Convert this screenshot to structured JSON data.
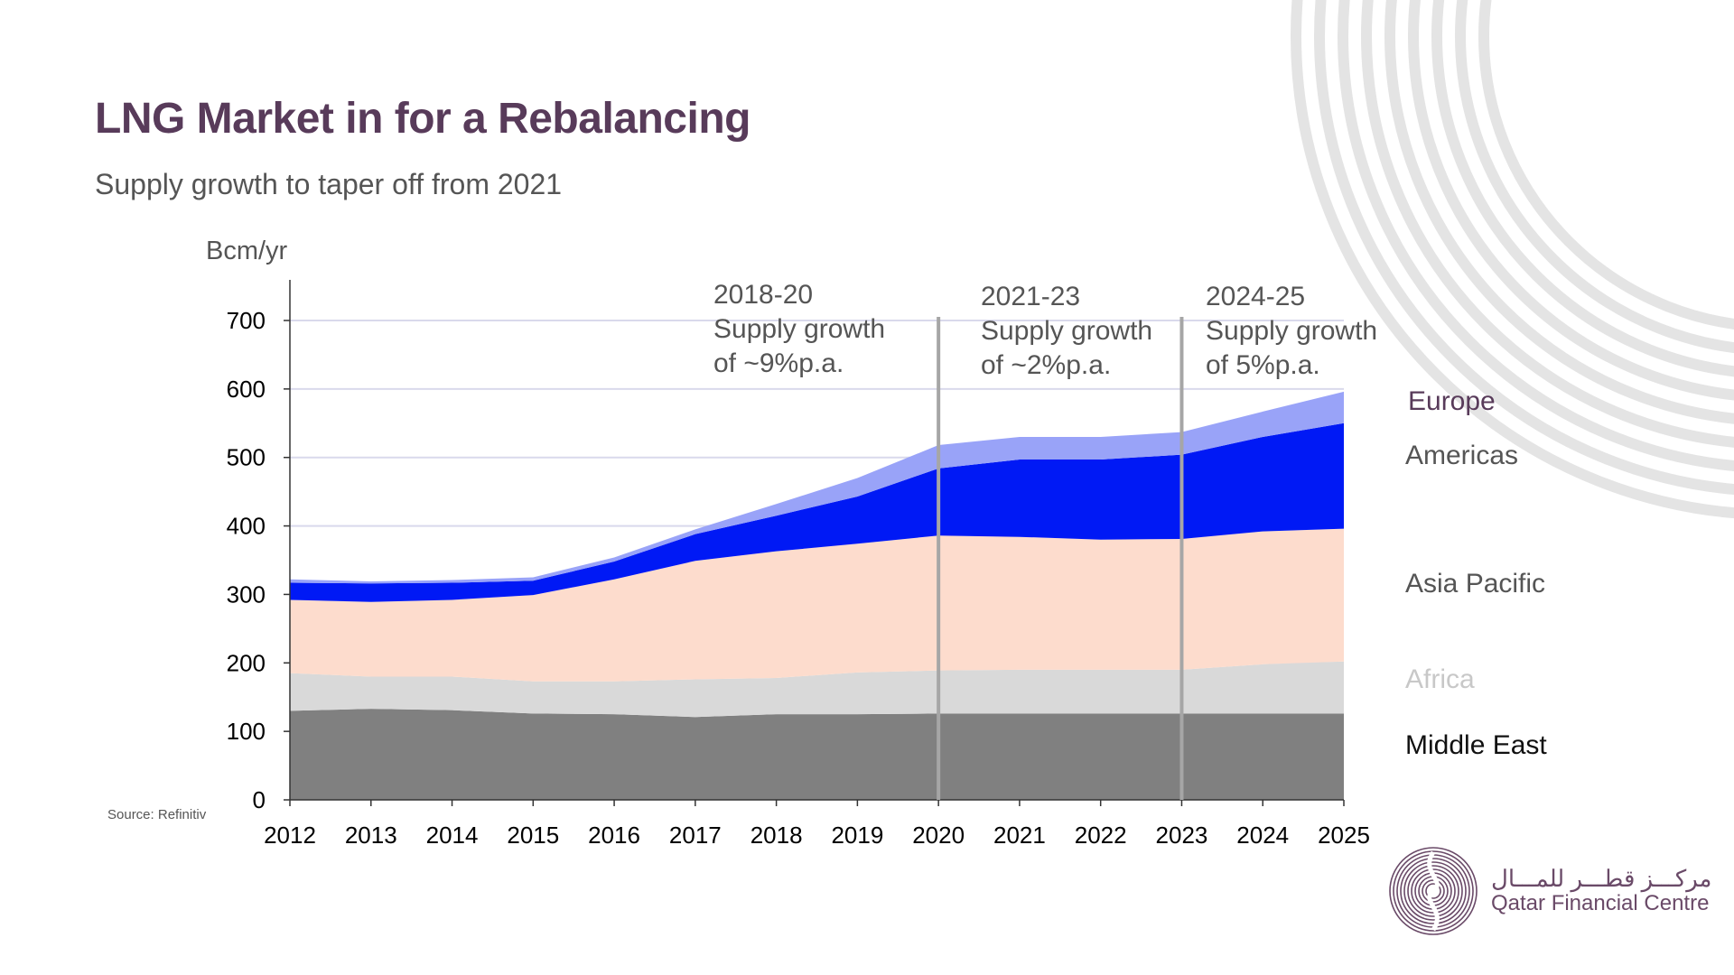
{
  "header": {
    "title": "LNG Market in for a Rebalancing",
    "subtitle": "Supply growth to taper off from 2021"
  },
  "source": "Source: Refinitiv",
  "logo": {
    "arabic": "مركـــز قطـــر للمـــال",
    "english": "Qatar Financial Centre"
  },
  "annotations": [
    {
      "lines": [
        "2018-20",
        "Supply growth",
        "of ~9%p.a."
      ]
    },
    {
      "lines": [
        "2021-23",
        "Supply growth",
        "of ~2%p.a."
      ]
    },
    {
      "lines": [
        "2024-25",
        "Supply growth",
        "of 5%p.a."
      ]
    }
  ],
  "colors": {
    "title": "#583b5a",
    "middle_east": "#808080",
    "africa": "#d9d9d9",
    "asia_pacific": "#fddccd",
    "americas": "#0019f5",
    "europe": "#99a3f8",
    "divider": "#a6a6a6"
  },
  "chart_data": {
    "type": "area",
    "stacked": true,
    "title": "",
    "ylabel": "Bcm/yr",
    "xlabel": "",
    "ylim": [
      0,
      700
    ],
    "yticks": [
      0,
      100,
      200,
      300,
      400,
      500,
      600,
      700
    ],
    "grid": true,
    "legend": "right",
    "x": [
      "2012",
      "2013",
      "2014",
      "2015",
      "2016",
      "2017",
      "2018",
      "2019",
      "2020",
      "2021",
      "2022",
      "2023",
      "2024",
      "2025"
    ],
    "vertical_markers": [
      "2020",
      "2023"
    ],
    "series": [
      {
        "name": "Middle East",
        "color": "#808080",
        "label_color": "#111111",
        "values": [
          130,
          133,
          131,
          126,
          125,
          121,
          125,
          125,
          126,
          126,
          126,
          126,
          126,
          126
        ]
      },
      {
        "name": "Africa",
        "color": "#d9d9d9",
        "label_color": "#c8c8c8",
        "values": [
          55,
          47,
          49,
          47,
          48,
          55,
          53,
          61,
          63,
          64,
          64,
          64,
          72,
          76
        ]
      },
      {
        "name": "Asia Pacific",
        "color": "#fddccd",
        "label_color": "#555555",
        "values": [
          107,
          109,
          112,
          126,
          149,
          173,
          185,
          188,
          197,
          194,
          190,
          191,
          194,
          194
        ]
      },
      {
        "name": "Americas",
        "color": "#0019f5",
        "label_color": "#555555",
        "values": [
          25,
          27,
          25,
          21,
          26,
          39,
          52,
          69,
          98,
          113,
          117,
          123,
          138,
          154
        ]
      },
      {
        "name": "Europe",
        "color": "#99a3f8",
        "label_color": "#583b5a",
        "values": [
          5,
          3,
          4,
          5,
          6,
          7,
          17,
          27,
          34,
          33,
          33,
          33,
          37,
          46
        ]
      }
    ]
  }
}
